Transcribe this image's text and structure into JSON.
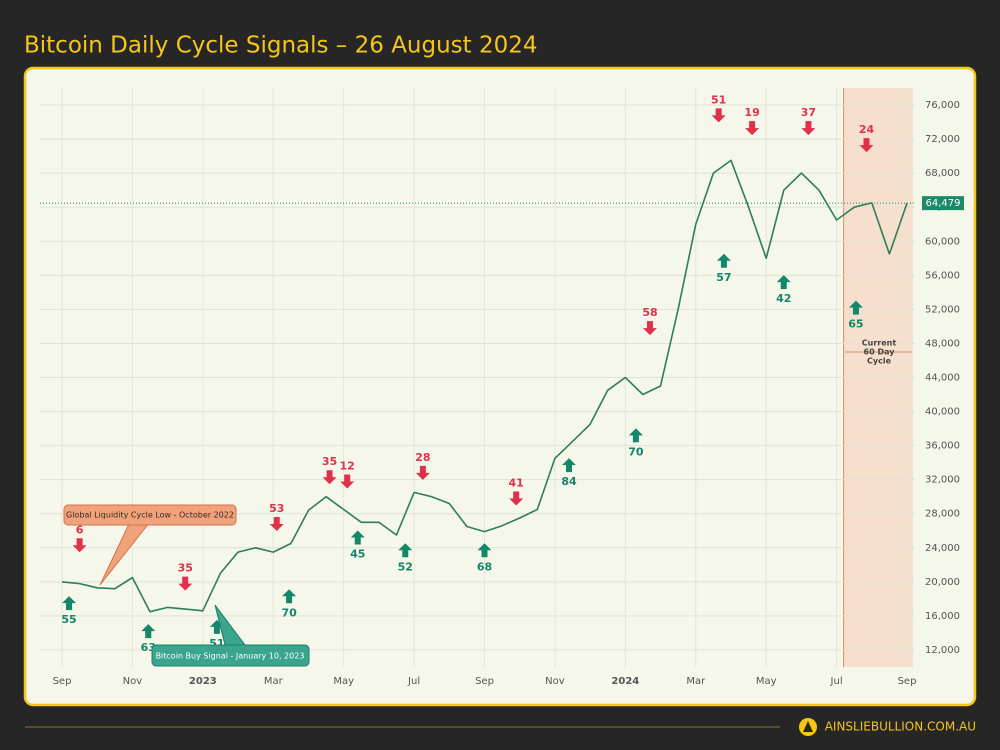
{
  "chart_data": {
    "type": "line",
    "title": "Bitcoin Daily Cycle Signals – 26 August 2024",
    "categories": [
      "Sep",
      null,
      null,
      null,
      "Nov",
      null,
      null,
      null,
      "2023",
      null,
      null,
      null,
      "Mar",
      null,
      null,
      null,
      "May",
      null,
      null,
      null,
      "Jul",
      null,
      null,
      null,
      "Sep",
      null,
      null,
      null,
      "Nov",
      null,
      null,
      null,
      "2024",
      null,
      null,
      null,
      "Mar",
      null,
      null,
      null,
      "May",
      null,
      null,
      null,
      "Jul",
      null,
      null,
      null,
      "Sep"
    ],
    "series": [
      {
        "name": "BTC",
        "color": "#2f7d5b",
        "values": [
          20000,
          19800,
          19300,
          19200,
          20500,
          16500,
          17000,
          16800,
          16600,
          21000,
          23500,
          24000,
          23500,
          24500,
          28400,
          30000,
          28500,
          27000,
          27000,
          25500,
          30500,
          30000,
          29200,
          26500,
          25900,
          26600,
          27500,
          28500,
          34500,
          36500,
          38500,
          42500,
          44000,
          42000,
          43000,
          52000,
          62000,
          68000,
          69500,
          64000,
          58000,
          66000,
          68000,
          66000,
          62500,
          64000,
          64500,
          58500,
          64479
        ]
      }
    ],
    "ylim": [
      10000,
      78000
    ],
    "yticks": [
      {
        "value": 12000,
        "label": "12,000"
      },
      {
        "value": 16000,
        "label": "16,000"
      },
      {
        "value": 20000,
        "label": "20,000"
      },
      {
        "value": 24000,
        "label": "24,000"
      },
      {
        "value": 28000,
        "label": "28,000"
      },
      {
        "value": 32000,
        "label": "32,000"
      },
      {
        "value": 36000,
        "label": "36,000"
      },
      {
        "value": 40000,
        "label": "40,000"
      },
      {
        "value": 44000,
        "label": "44,000"
      },
      {
        "value": 48000,
        "label": "48,000"
      },
      {
        "value": 52000,
        "label": "52,000"
      },
      {
        "value": 56000,
        "label": "56,000"
      },
      {
        "value": 60000,
        "label": "60,000"
      },
      {
        "value": 64000,
        "label": "64,000"
      },
      {
        "value": 68000,
        "label": "68,000"
      },
      {
        "value": 72000,
        "label": "72,000"
      },
      {
        "value": 76000,
        "label": "76,000"
      }
    ],
    "grid": true,
    "last_price": {
      "value": 64479,
      "label": "64,479",
      "color": "#1a8a6a"
    },
    "sell_signals": {
      "color": "#e0304a",
      "points": [
        {
          "label": "6",
          "index": 1,
          "y": 23000
        },
        {
          "label": "35",
          "index": 7,
          "y": 18500
        },
        {
          "label": "53",
          "index": 12.2,
          "y": 25500
        },
        {
          "label": "35",
          "index": 15.2,
          "y": 31000
        },
        {
          "label": "12",
          "index": 16.2,
          "y": 30500
        },
        {
          "label": "28",
          "index": 20.5,
          "y": 31500
        },
        {
          "label": "41",
          "index": 25.8,
          "y": 28500
        },
        {
          "label": "58",
          "index": 33.4,
          "y": 48500
        },
        {
          "label": "51",
          "index": 37.3,
          "y": 73500
        },
        {
          "label": "19",
          "index": 39.2,
          "y": 72000
        },
        {
          "label": "37",
          "index": 42.4,
          "y": 72000
        },
        {
          "label": "24",
          "index": 45.7,
          "y": 70000
        }
      ]
    },
    "buy_signals": {
      "color": "#14866a",
      "points": [
        {
          "label": "55",
          "index": 0.4,
          "y": 18800
        },
        {
          "label": "63",
          "index": 4.9,
          "y": 15500
        },
        {
          "label": "51",
          "index": 8.8,
          "y": 16000
        },
        {
          "label": "70",
          "index": 12.9,
          "y": 19600
        },
        {
          "label": "45",
          "index": 16.8,
          "y": 26500
        },
        {
          "label": "52",
          "index": 19.5,
          "y": 25000
        },
        {
          "label": "68",
          "index": 24,
          "y": 25000
        },
        {
          "label": "84",
          "index": 28.8,
          "y": 35000
        },
        {
          "label": "70",
          "index": 32.6,
          "y": 38500
        },
        {
          "label": "57",
          "index": 37.6,
          "y": 59000
        },
        {
          "label": "42",
          "index": 41,
          "y": 56500
        },
        {
          "label": "65",
          "index": 45.1,
          "y": 53500
        }
      ]
    },
    "annotations": {
      "liquidity_low": "Global Liquidity Cycle Low - October 2022",
      "buy_signal": "Bitcoin Buy Signal - January 10, 2023",
      "current_cycle": [
        "Current",
        "60 Day",
        "Cycle"
      ],
      "cycle_start_index": 44.4
    }
  },
  "footer": {
    "brand": "AINSLIEBULLION.COM.AU"
  }
}
